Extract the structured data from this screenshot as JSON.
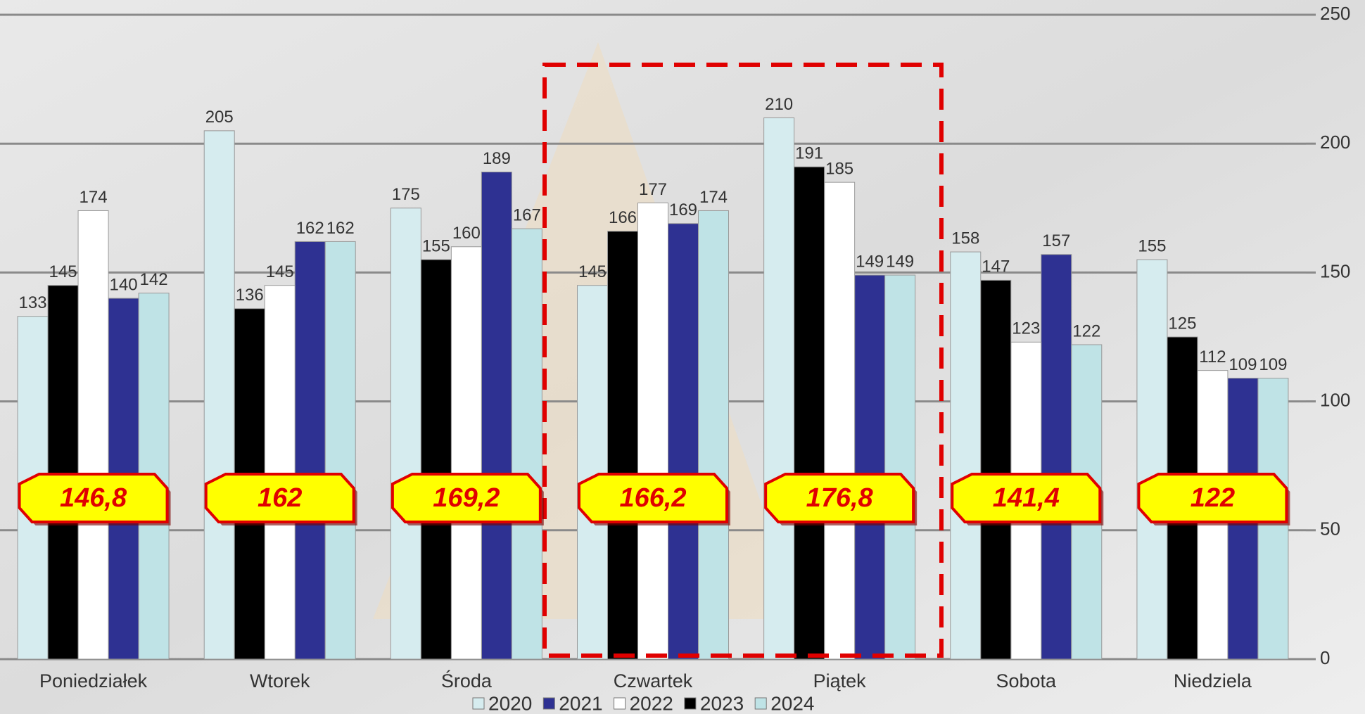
{
  "chart_data": {
    "type": "bar",
    "categories": [
      "Poniedziałek",
      "Wtorek",
      "Środa",
      "Czwartek",
      "Piątek",
      "Sobota",
      "Niedziela"
    ],
    "series": [
      {
        "name": "2020",
        "color": "#d6ecef",
        "values": [
          133,
          205,
          175,
          145,
          210,
          158,
          155
        ]
      },
      {
        "name": "2021",
        "color": "#2e3192",
        "values": [
          140,
          162,
          189,
          169,
          149,
          157,
          109
        ]
      },
      {
        "name": "2022",
        "color": "#ffffff",
        "values": [
          174,
          145,
          160,
          177,
          185,
          123,
          112
        ]
      },
      {
        "name": "2023",
        "color": "#000000",
        "values": [
          145,
          136,
          155,
          166,
          191,
          147,
          125
        ]
      },
      {
        "name": "2024",
        "color": "#bfe3e6",
        "values": [
          142,
          162,
          167,
          174,
          149,
          122,
          109
        ]
      }
    ],
    "averages": {
      "values": [
        146.8,
        162,
        169.2,
        166.2,
        176.8,
        141.4,
        122
      ],
      "value_labels": [
        "146,8",
        "162",
        "169,2",
        "166,2",
        "176,8",
        "141,4",
        "122"
      ]
    },
    "ylim": [
      0,
      250
    ],
    "yticks": [
      0,
      50,
      100,
      150,
      200,
      250
    ],
    "grid": true,
    "legend": "bottom"
  }
}
